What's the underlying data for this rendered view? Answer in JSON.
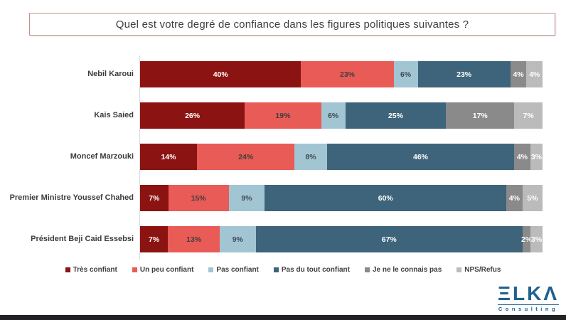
{
  "title": "Quel est votre degré de confiance dans les figures politiques suivantes ?",
  "chart_data": {
    "type": "bar",
    "subtype": "horizontal-stacked",
    "title": "Quel est votre degré de confiance dans les figures politiques suivantes ?",
    "categories": [
      "Nebil Karoui",
      "Kais Saied",
      "Moncef Marzouki",
      "Premier Ministre Youssef Chahed",
      "Président Beji Caid Essebsi"
    ],
    "series": [
      {
        "name": "Très confiant",
        "color": "#8B1311",
        "label_color": "#FFFFFF",
        "values": [
          40,
          26,
          14,
          7,
          7
        ]
      },
      {
        "name": "Un peu confiant",
        "color": "#E95B56",
        "label_color": "#3F3F3F",
        "values": [
          23,
          19,
          24,
          15,
          13
        ]
      },
      {
        "name": "Pas confiant",
        "color": "#A2C5D3",
        "label_color": "#3F4A50",
        "values": [
          6,
          6,
          8,
          9,
          9
        ]
      },
      {
        "name": "Pas du tout confiant",
        "color": "#3D647A",
        "label_color": "#FFFFFF",
        "values": [
          23,
          25,
          46,
          60,
          67
        ]
      },
      {
        "name": "Je ne le connais pas",
        "color": "#8A8A8A",
        "label_color": "#FFFFFF",
        "values": [
          4,
          17,
          4,
          4,
          2
        ]
      },
      {
        "name": "NPS/Refus",
        "color": "#BBBBBB",
        "label_color": "#FFFFFF",
        "values": [
          4,
          7,
          3,
          5,
          3
        ]
      }
    ],
    "value_suffix": "%",
    "xlim": [
      0,
      100
    ],
    "grid": false,
    "legend_position": "bottom"
  },
  "logo": {
    "brand": "ELKA",
    "brand_display": "ΞLKΛ",
    "subtitle": "Consulting"
  },
  "accents": {
    "title_border": "#C9908D",
    "logo_blue": "#1F6191",
    "footer_bar": "#222226",
    "axis_line": "#D9D9D9",
    "background": "#FFFFFF"
  }
}
